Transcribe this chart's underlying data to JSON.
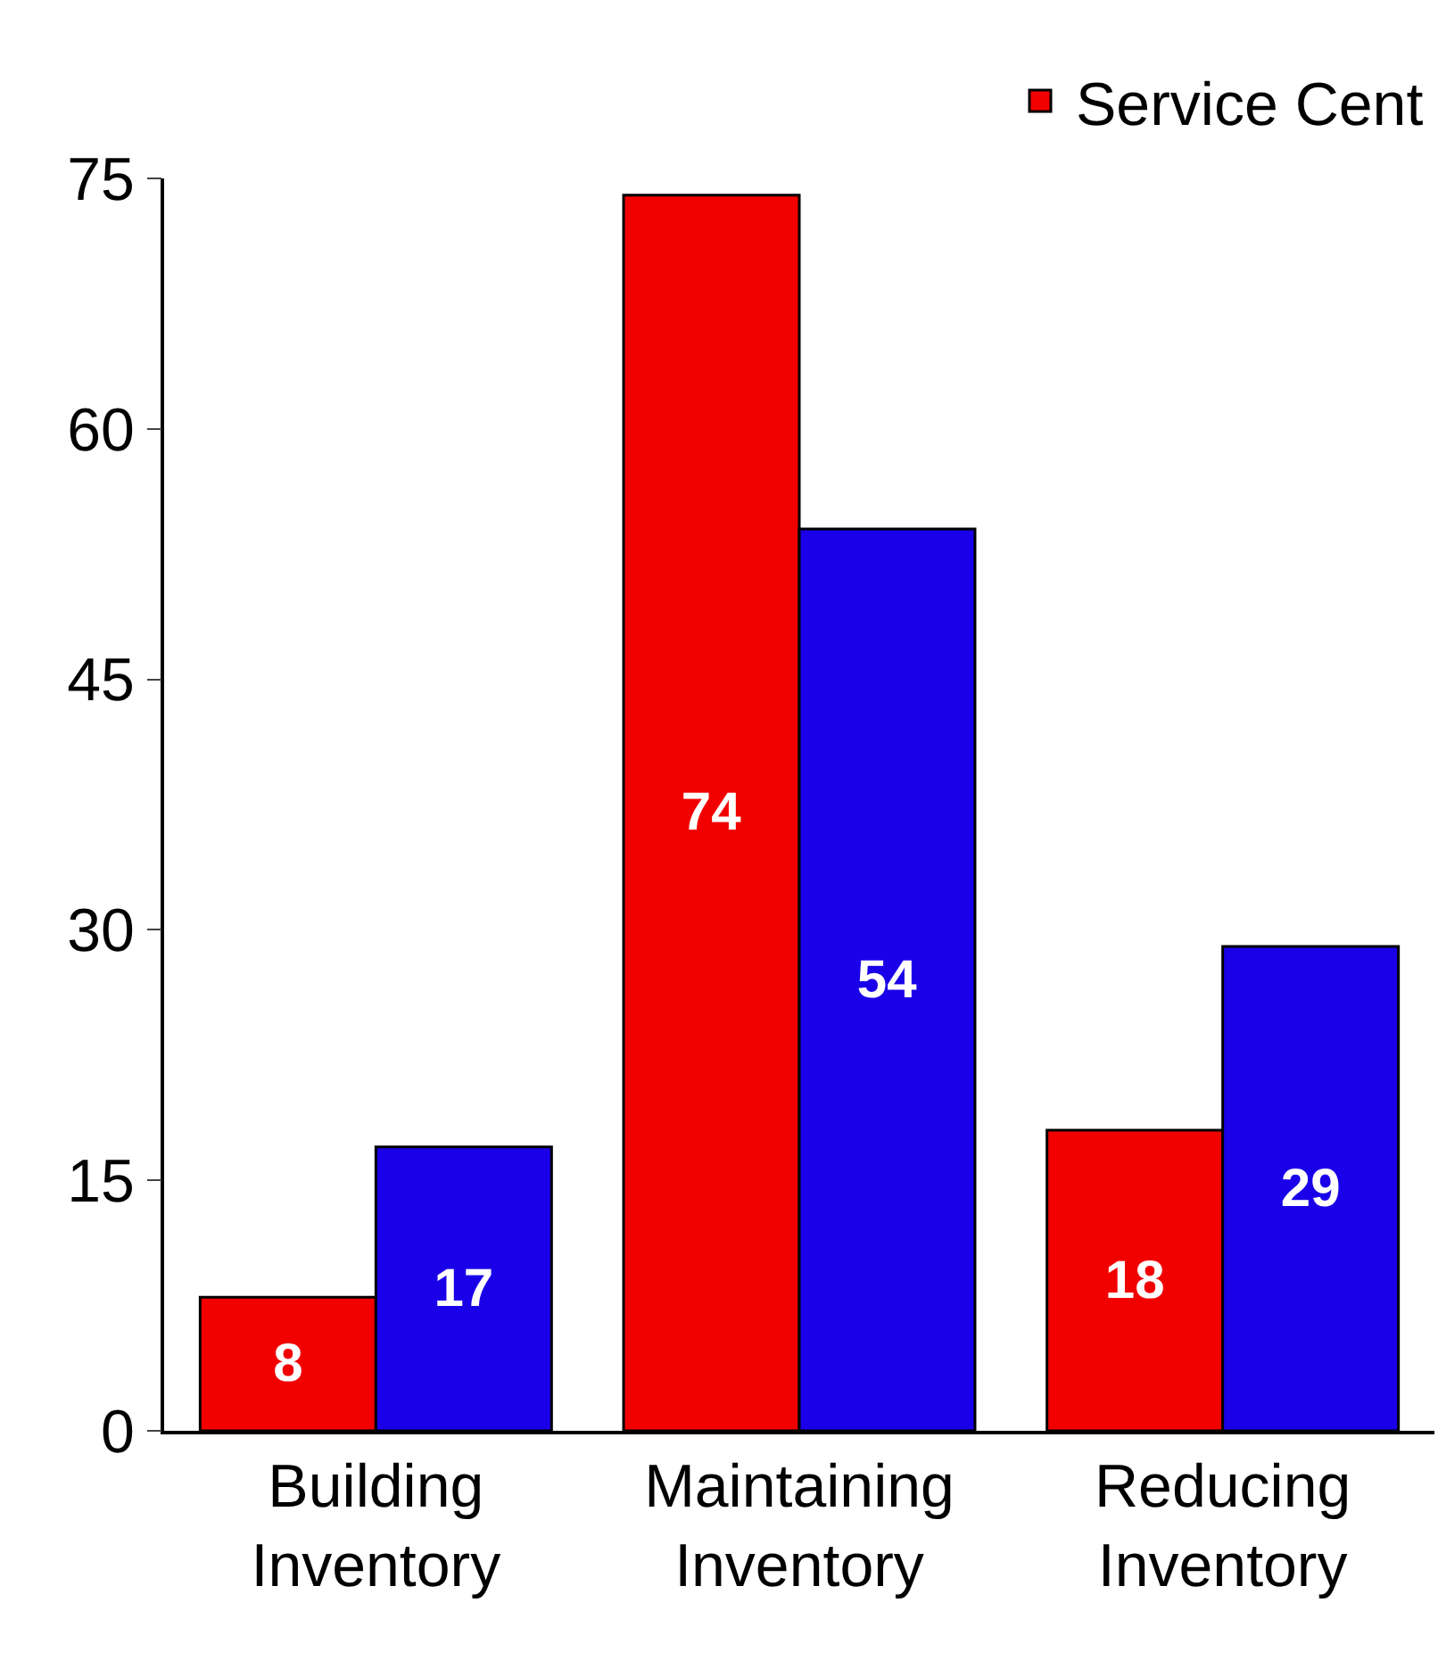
{
  "chart_data": {
    "type": "bar",
    "categories": [
      "Building\nInventory",
      "Maintaining\nInventory",
      "Reducing\nInventory"
    ],
    "series": [
      {
        "name": "Service Cent",
        "color": "#f20000",
        "values": [
          8,
          74,
          18
        ]
      },
      {
        "color": "#1a00e8",
        "values": [
          17,
          54,
          29
        ]
      }
    ],
    "ylim": [
      0,
      75
    ],
    "yticks": [
      0,
      15,
      30,
      45,
      60,
      75
    ],
    "legend": "top right",
    "data_labels": true
  }
}
